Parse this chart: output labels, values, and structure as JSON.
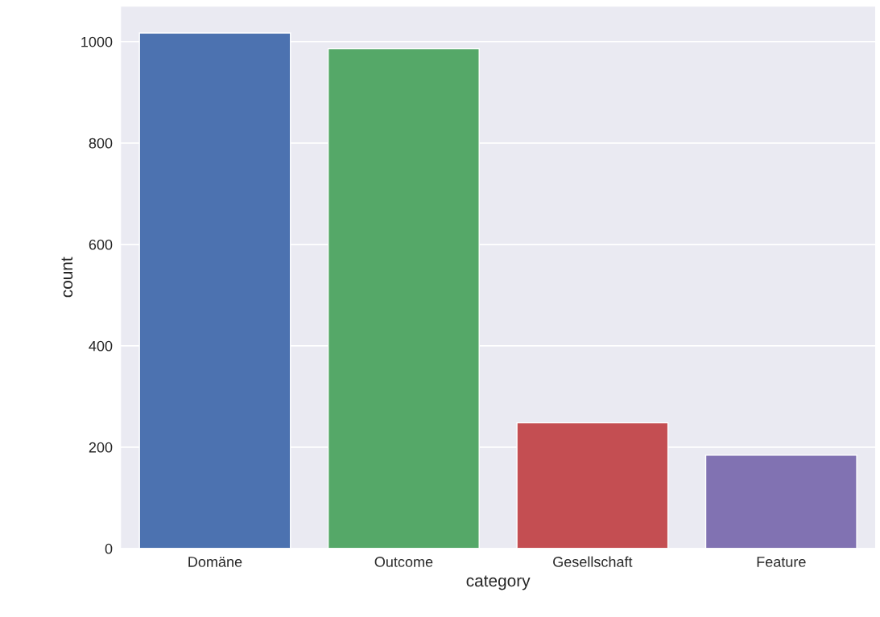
{
  "chart_data": {
    "type": "bar",
    "xlabel": "category",
    "ylabel": "count",
    "categories": [
      "Domäne",
      "Outcome",
      "Gesellschaft",
      "Feature"
    ],
    "values": [
      1017,
      986,
      248,
      184
    ],
    "colors": [
      "#4c72b0",
      "#55a868",
      "#c44e52",
      "#8172b2"
    ],
    "ylim": [
      0,
      1070
    ],
    "yticks": [
      0,
      200,
      400,
      600,
      800,
      1000
    ],
    "grid": "y"
  }
}
